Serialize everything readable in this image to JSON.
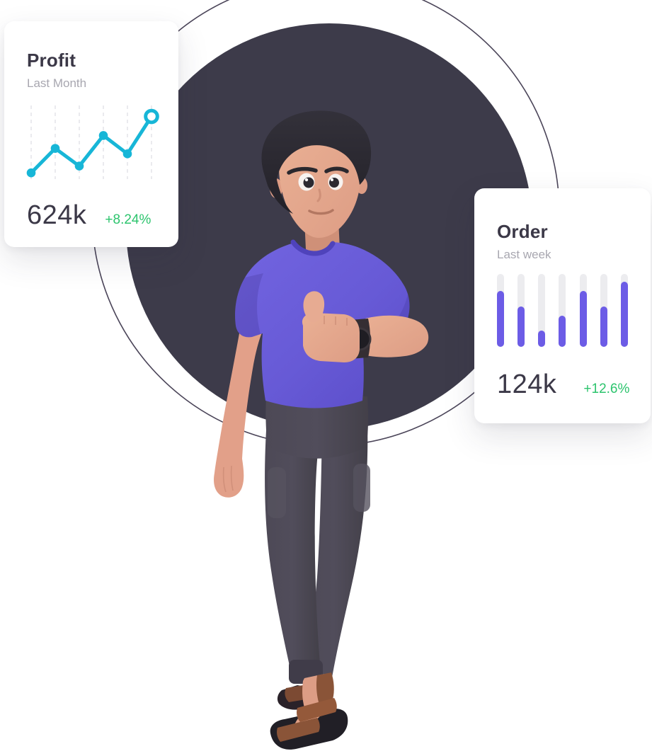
{
  "theme": {
    "page_bg": "#ffffff",
    "card_bg": "#ffffff",
    "title_color": "#3b3847",
    "subtitle_color": "#a8a7b0",
    "value_color": "#3b3847",
    "positive_color": "#2cc46d",
    "line_color": "#17b6d7",
    "grid_color": "#e3e3e8",
    "bar_color": "#6c5ce6",
    "bar_track_color": "#ececef",
    "circle_color": "#3d3b4a",
    "ring_color": "#4b4559"
  },
  "profit_card": {
    "title": "Profit",
    "subtitle": "Last Month",
    "value": "624k",
    "change": "+8.24%"
  },
  "order_card": {
    "title": "Order",
    "subtitle": "Last week",
    "value": "124k",
    "change": "+12.6%"
  },
  "chart_data": [
    {
      "type": "line",
      "title": "Profit",
      "subtitle": "Last Month",
      "x": [
        1,
        2,
        3,
        4,
        5,
        6
      ],
      "values": [
        5,
        41,
        15,
        60,
        33,
        88
      ],
      "ylim": [
        0,
        100
      ],
      "grid": "dashed-vertical-lines",
      "marker": "filled-dot",
      "last_marker": "open-ring",
      "legend": "none",
      "summary_value": "624k",
      "summary_change": "+8.24%"
    },
    {
      "type": "bar",
      "title": "Order",
      "subtitle": "Last week",
      "categories": [
        "1",
        "2",
        "3",
        "4",
        "5",
        "6",
        "7"
      ],
      "values": [
        77,
        55,
        22,
        43,
        77,
        55,
        89
      ],
      "ylim": [
        0,
        100
      ],
      "track": "full-height-rounded-capsule",
      "legend": "none",
      "summary_value": "124k",
      "summary_change": "+12.6%"
    }
  ],
  "illustration": {
    "description": "3D man with dark hair and purple t-shirt giving a thumbs up, wearing dark joggers, a wristwatch and brown sandals, standing in front of a dark circle with a thin outline ring",
    "shirt_color": "#685cd8",
    "pants_color": "#4a4653",
    "skin_color": "#e3a58e",
    "hair_color": "#2b2930",
    "sandal_color": "#8a5438",
    "watch_color": "#1f1d23"
  }
}
